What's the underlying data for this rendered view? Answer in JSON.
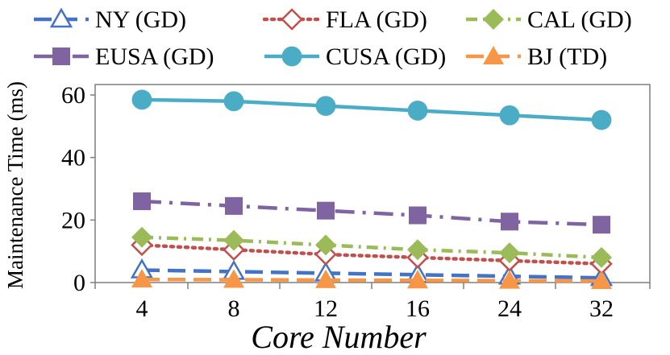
{
  "chart_data": {
    "type": "line",
    "title": "",
    "xlabel": "Core Number",
    "ylabel": "Maintenance Time (ms)",
    "categories": [
      "4",
      "8",
      "12",
      "16",
      "24",
      "32"
    ],
    "ylim": [
      0,
      60
    ],
    "yticks": [
      "0",
      "20",
      "40",
      "60"
    ],
    "grid": false,
    "legend_position": "top",
    "series": [
      {
        "name": "NY (GD)",
        "color": "#4472C4",
        "dash": "long-dash",
        "marker": "triangle-open",
        "values": [
          4.0,
          3.5,
          3.0,
          2.5,
          2.0,
          1.5
        ]
      },
      {
        "name": "FLA (GD)",
        "color": "#C0504D",
        "dash": "dotted",
        "marker": "diamond-open",
        "values": [
          12.0,
          10.5,
          9.0,
          8.0,
          7.0,
          6.0
        ]
      },
      {
        "name": "CAL (GD)",
        "color": "#9BBB59",
        "dash": "dash-dot",
        "marker": "diamond",
        "values": [
          14.5,
          13.5,
          12.0,
          10.5,
          9.5,
          8.0
        ]
      },
      {
        "name": "EUSA (GD)",
        "color": "#8064A2",
        "dash": "long-dash-dot",
        "marker": "square",
        "values": [
          26.0,
          24.5,
          23.0,
          21.5,
          19.5,
          18.5
        ]
      },
      {
        "name": "CUSA (GD)",
        "color": "#4BACC6",
        "dash": "solid",
        "marker": "circle",
        "values": [
          58.5,
          58.0,
          56.5,
          55.0,
          53.5,
          52.0
        ]
      },
      {
        "name": "BJ (TD)",
        "color": "#F79646",
        "dash": "long-dash",
        "marker": "triangle",
        "values": [
          1.0,
          0.9,
          0.8,
          0.7,
          0.6,
          0.5
        ]
      }
    ]
  }
}
